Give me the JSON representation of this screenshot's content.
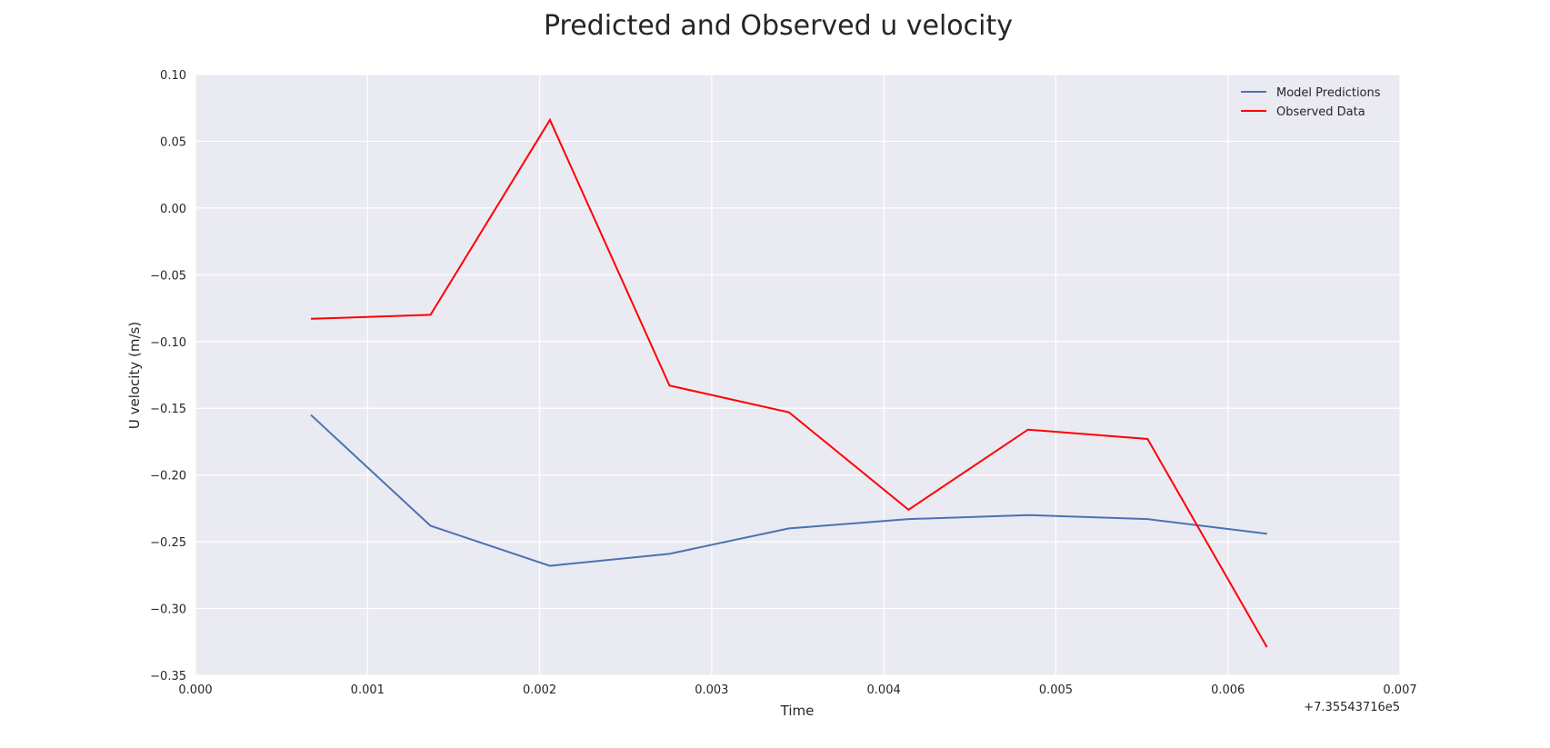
{
  "chart_data": {
    "type": "line",
    "title": "Predicted and Observed u velocity",
    "xlabel": "Time",
    "ylabel": "U velocity (m/s)",
    "x_offset_label": "+7.35543716e5",
    "xlim": [
      0.0,
      0.007
    ],
    "ylim": [
      -0.35,
      0.1
    ],
    "xticks": [
      "0.000",
      "0.001",
      "0.002",
      "0.003",
      "0.004",
      "0.005",
      "0.006",
      "0.007"
    ],
    "yticks": [
      "−0.35",
      "−0.30",
      "−0.25",
      "−0.20",
      "−0.15",
      "−0.10",
      "−0.05",
      "0.00",
      "0.05",
      "0.10"
    ],
    "grid": true,
    "legend_position": "top-right",
    "x": [
      0.000671,
      0.001366,
      0.00206,
      0.002755,
      0.003449,
      0.004144,
      0.004838,
      0.005533,
      0.006227
    ],
    "series": [
      {
        "name": "Model Predictions",
        "color": "#4c72b0",
        "values": [
          -0.155,
          -0.238,
          -0.268,
          -0.259,
          -0.24,
          -0.233,
          -0.23,
          -0.233,
          -0.244
        ]
      },
      {
        "name": "Observed Data",
        "color": "#ff0000",
        "values": [
          -0.083,
          -0.08,
          0.066,
          -0.133,
          -0.153,
          -0.226,
          -0.166,
          -0.173,
          -0.329
        ]
      }
    ]
  }
}
